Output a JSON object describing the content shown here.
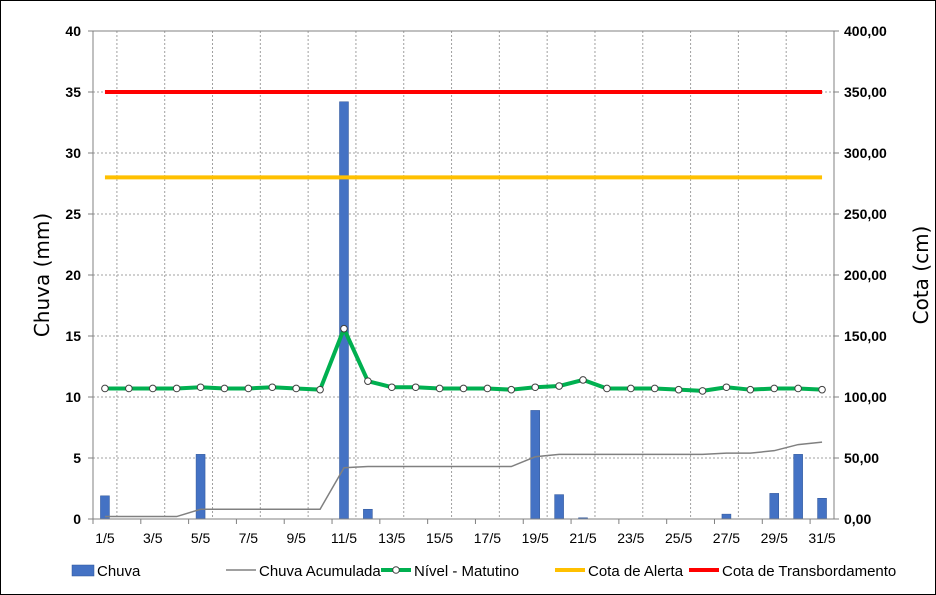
{
  "chart_data": {
    "type": "bar+line",
    "ylabel_left": "Chuva (mm)",
    "ylabel_right": "Cota (cm)",
    "ylim_left": [
      0,
      40
    ],
    "ylim_right": [
      0,
      400
    ],
    "yticks_left": [
      "0",
      "5",
      "10",
      "15",
      "20",
      "25",
      "30",
      "35",
      "40"
    ],
    "yticks_right": [
      "0,00",
      "50,00",
      "100,00",
      "150,00",
      "200,00",
      "250,00",
      "300,00",
      "350,00",
      "400,00"
    ],
    "x_tick_labels": [
      "1/5",
      "3/5",
      "5/5",
      "7/5",
      "9/5",
      "11/5",
      "13/5",
      "15/5",
      "17/5",
      "19/5",
      "21/5",
      "23/5",
      "25/5",
      "27/5",
      "29/5",
      "31/5"
    ],
    "categories": [
      "1/5",
      "2/5",
      "3/5",
      "4/5",
      "5/5",
      "6/5",
      "7/5",
      "8/5",
      "9/5",
      "10/5",
      "11/5",
      "12/5",
      "13/5",
      "14/5",
      "15/5",
      "16/5",
      "17/5",
      "18/5",
      "19/5",
      "20/5",
      "21/5",
      "22/5",
      "23/5",
      "24/5",
      "25/5",
      "26/5",
      "27/5",
      "28/5",
      "29/5",
      "30/5",
      "31/5"
    ],
    "grid": true,
    "legend_position": "bottom",
    "series": [
      {
        "name": "Chuva",
        "kind": "bar",
        "axis": "left",
        "color": "#4472C4",
        "values": [
          1.9,
          0,
          0,
          0,
          5.3,
          0,
          0,
          0,
          0,
          0,
          34.2,
          0.8,
          0,
          0,
          0,
          0,
          0,
          0,
          8.9,
          2.0,
          0.1,
          0,
          0,
          0,
          0,
          0,
          0.4,
          0,
          2.1,
          5.3,
          1.7
        ]
      },
      {
        "name": "Chuva Acumulada",
        "kind": "line",
        "axis": "left",
        "color": "#808080",
        "values": [
          0.2,
          0.2,
          0.2,
          0.2,
          0.8,
          0.8,
          0.8,
          0.8,
          0.8,
          0.8,
          4.2,
          4.3,
          4.3,
          4.3,
          4.3,
          4.3,
          4.3,
          4.3,
          5.1,
          5.3,
          5.3,
          5.3,
          5.3,
          5.3,
          5.3,
          5.3,
          5.4,
          5.4,
          5.6,
          6.1,
          6.3
        ]
      },
      {
        "name": "Nível - Matutino",
        "kind": "line-markers",
        "axis": "right",
        "color": "#00B050",
        "values": [
          107,
          107,
          107,
          107,
          108,
          107,
          107,
          108,
          107,
          106,
          156,
          113,
          108,
          108,
          107,
          107,
          107,
          106,
          108,
          109,
          114,
          107,
          107,
          107,
          106,
          105,
          108,
          106,
          107,
          107,
          106
        ]
      },
      {
        "name": "Cota de Alerta",
        "kind": "hline",
        "axis": "right",
        "color": "#FFC000",
        "value": 280
      },
      {
        "name": "Cota de Transbordamento",
        "kind": "hline",
        "axis": "right",
        "color": "#FF0000",
        "value": 350
      }
    ]
  }
}
